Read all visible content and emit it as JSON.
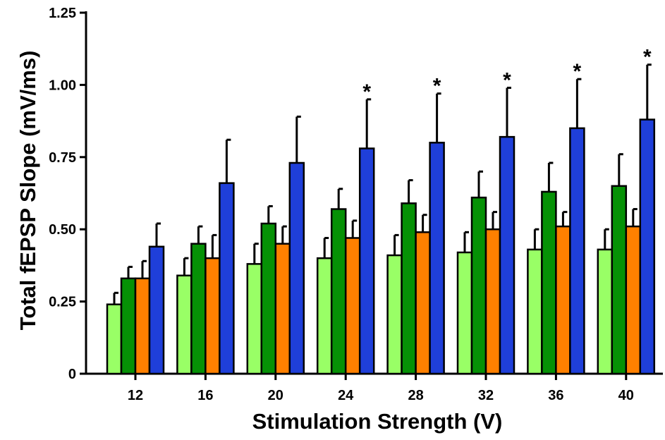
{
  "chart_data": {
    "type": "bar",
    "title": "",
    "xlabel": "Stimulation Strength (V)",
    "ylabel": "Total fEPSP Slope (mV/ms)",
    "ylim": [
      0,
      1.25
    ],
    "yticks": [
      {
        "value": 0,
        "label": "0"
      },
      {
        "value": 0.25,
        "label": "0.25"
      },
      {
        "value": 0.5,
        "label": "0.50"
      },
      {
        "value": 0.75,
        "label": "0.75"
      },
      {
        "value": 1.0,
        "label": "1.00"
      },
      {
        "value": 1.25,
        "label": "1.25"
      }
    ],
    "categories": [
      "12",
      "16",
      "20",
      "24",
      "28",
      "32",
      "36",
      "40"
    ],
    "grid": false,
    "legend": "none",
    "series": [
      {
        "color": "#99ff66",
        "values": [
          0.24,
          0.34,
          0.38,
          0.4,
          0.41,
          0.42,
          0.43,
          0.43
        ],
        "errors": [
          0.04,
          0.06,
          0.07,
          0.07,
          0.07,
          0.07,
          0.07,
          0.07
        ]
      },
      {
        "color": "#069106",
        "values": [
          0.33,
          0.45,
          0.52,
          0.57,
          0.59,
          0.61,
          0.63,
          0.65
        ],
        "errors": [
          0.04,
          0.06,
          0.06,
          0.07,
          0.08,
          0.09,
          0.1,
          0.11
        ]
      },
      {
        "color": "#ff8000",
        "values": [
          0.33,
          0.4,
          0.45,
          0.47,
          0.49,
          0.5,
          0.51,
          0.51
        ],
        "errors": [
          0.06,
          0.08,
          0.06,
          0.06,
          0.06,
          0.06,
          0.05,
          0.06
        ]
      },
      {
        "color": "#1f3fd9",
        "values": [
          0.44,
          0.66,
          0.73,
          0.78,
          0.8,
          0.82,
          0.85,
          0.88
        ],
        "errors": [
          0.08,
          0.15,
          0.16,
          0.17,
          0.17,
          0.17,
          0.17,
          0.19
        ]
      }
    ],
    "annotations": [
      {
        "text": "*",
        "category": "24",
        "series_index": 3
      },
      {
        "text": "*",
        "category": "28",
        "series_index": 3
      },
      {
        "text": "*",
        "category": "32",
        "series_index": 3
      },
      {
        "text": "*",
        "category": "36",
        "series_index": 3
      },
      {
        "text": "*",
        "category": "40",
        "series_index": 3
      }
    ]
  }
}
